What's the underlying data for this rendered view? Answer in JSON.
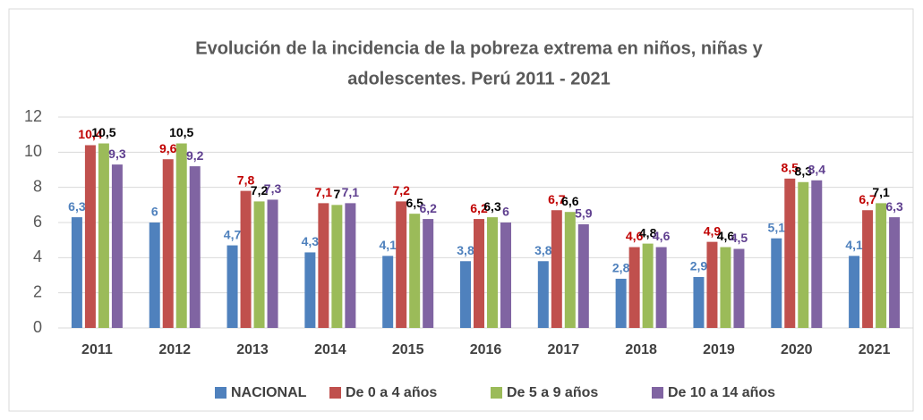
{
  "chart_data": {
    "type": "bar",
    "title": [
      "Evolución de la incidencia de la pobreza extrema en niños, niñas y",
      "adolescentes. Perú 2011 - 2021"
    ],
    "categories": [
      "2011",
      "2012",
      "2013",
      "2014",
      "2015",
      "2016",
      "2017",
      "2018",
      "2019",
      "2020",
      "2021"
    ],
    "series": [
      {
        "name": "NACIONAL",
        "color": "#4f81bd",
        "label_color": "#4f81bd",
        "values": [
          6.3,
          6,
          4.7,
          4.3,
          4.1,
          3.8,
          3.8,
          2.8,
          2.9,
          5.1,
          4.1
        ],
        "value_labels": [
          "6,3",
          "6",
          "4,7",
          "4,3",
          "4,1",
          "3,8",
          "3,8",
          "2,8",
          "2,9",
          "5,1",
          "4,1"
        ]
      },
      {
        "name": "De 0 a 4 años",
        "color": "#c0504d",
        "label_color": "#c00000",
        "values": [
          10.4,
          9.6,
          7.8,
          7.1,
          7.2,
          6.2,
          6.7,
          4.6,
          4.9,
          8.5,
          6.7
        ],
        "value_labels": [
          "10,4",
          "9,6",
          "7,8",
          "7,1",
          "7,2",
          "6,2",
          "6,7",
          "4,6",
          "4,9",
          "8,5",
          "6,7"
        ]
      },
      {
        "name": "De 5 a 9 años",
        "color": "#9bbb59",
        "label_color": "#000000",
        "values": [
          10.5,
          10.5,
          7.2,
          7,
          6.5,
          6.3,
          6.6,
          4.8,
          4.6,
          8.3,
          7.1
        ],
        "value_labels": [
          "10,5",
          "10,5",
          "7,2",
          "7",
          "6,5",
          "6,3",
          "6,6",
          "4,8",
          "4,6",
          "8,3",
          "7,1"
        ]
      },
      {
        "name": "De 10 a 14 años",
        "color": "#8064a2",
        "label_color": "#5f3f8f",
        "values": [
          9.3,
          9.2,
          7.3,
          7.1,
          6.2,
          6,
          5.9,
          4.6,
          4.5,
          8.4,
          6.3
        ],
        "value_labels": [
          "9,3",
          "9,2",
          "7,3",
          "7,1",
          "6,2",
          "6",
          "5,9",
          "4,6",
          "4,5",
          "8,4",
          "6,3"
        ]
      }
    ],
    "ylim": [
      0,
      12
    ],
    "yticks": [
      0,
      2,
      4,
      6,
      8,
      10,
      12
    ],
    "grid": true,
    "legend": "bottom"
  }
}
